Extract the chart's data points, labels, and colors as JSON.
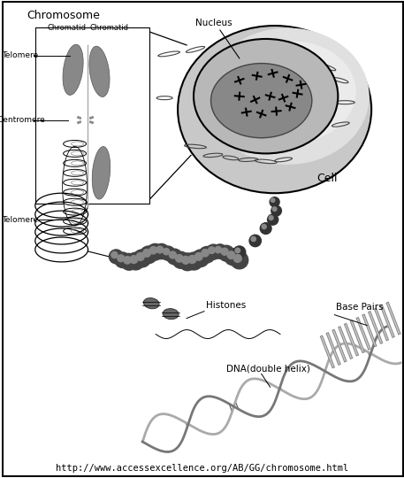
{
  "background_color": "#ffffff",
  "dpi": 100,
  "figure_width": 4.57,
  "figure_height": 5.4,
  "url_text": "http://www.accessexcellence.org/AB/GG/chromosome.html",
  "url_fontsize": 7.5,
  "labels": {
    "chromosome": "Chromosome",
    "chromatid1": "Chromatid",
    "chromatid2": "Chromatid",
    "telomere_top": "Telomere",
    "centromere": "Centromere",
    "telomere_bottom": "Telomere",
    "nucleus": "Nucleus",
    "cell": "Cell",
    "histones": "Histones",
    "dna": "DNA(double helix)",
    "base_pairs": "Base Pairs"
  },
  "arm_color": "#888888",
  "coil_color": "#555555",
  "cell_fill": "#d0d0d0",
  "nucleus_fill": "#aaaaaa",
  "nucleus_inner_fill": "#777777"
}
